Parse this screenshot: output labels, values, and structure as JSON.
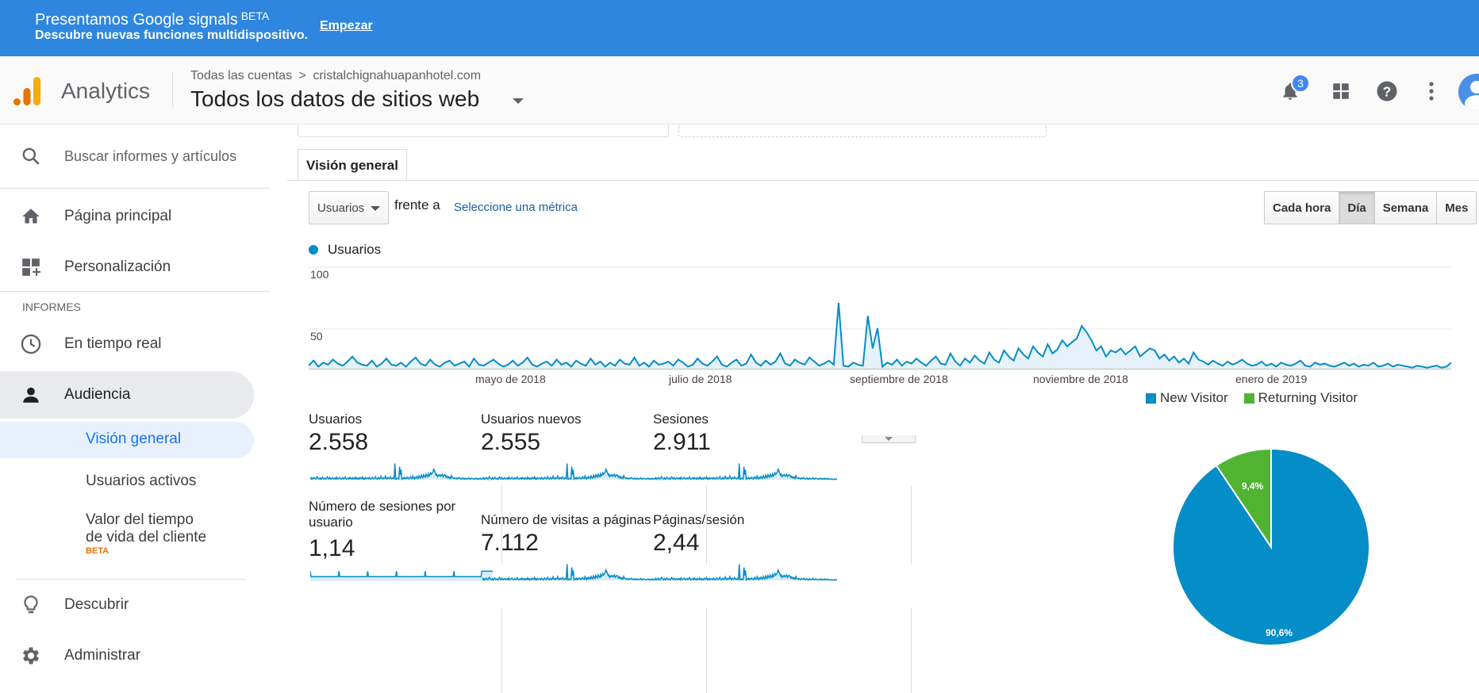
{
  "banner": {
    "title": "Presentamos Google signals",
    "title_badge": "BETA",
    "subtitle": "Descubre nuevas funciones multidispositivo.",
    "cta": "Empezar"
  },
  "header": {
    "brand": "Analytics",
    "breadcrumb_root": "Todas las cuentas",
    "breadcrumb_sep": ">",
    "breadcrumb_account": "cristalchignahuapanhotel.com",
    "view_title": "Todos los datos de sitios web",
    "notification_count": "3"
  },
  "sidebar": {
    "search_placeholder": "Buscar informes y artículos",
    "home": "Página principal",
    "customization": "Personalización",
    "section_reports": "INFORMES",
    "realtime": "En tiempo real",
    "audience": "Audiencia",
    "sub": {
      "overview": "Visión general",
      "active_users": "Usuarios activos",
      "lifetime_value_1": "Valor del tiempo",
      "lifetime_value_2": "de vida del cliente",
      "lifetime_badge": "BETA"
    },
    "discover": "Descubrir",
    "admin": "Administrar"
  },
  "main": {
    "tab": "Visión general",
    "metric_select": "Usuarios",
    "versus": "frente a",
    "select_metric": "Seleccione una métrica",
    "granularity": [
      "Cada hora",
      "Día",
      "Semana",
      "Mes"
    ],
    "granularity_active": "Día",
    "legend": "Usuarios"
  },
  "chart_data": [
    {
      "type": "area",
      "series": [
        {
          "name": "Usuarios",
          "color": "#058dc7"
        }
      ],
      "y_ticks": [
        "100",
        "50"
      ],
      "ylim": [
        0,
        100
      ],
      "x_ticks": [
        "mayo de 2018",
        "julio de 2018",
        "septiembre de 2018",
        "noviembre de 2018",
        "enero de 2019"
      ],
      "grid": true,
      "daily_values": [
        3,
        8,
        2,
        6,
        4,
        9,
        5,
        3,
        7,
        12,
        6,
        4,
        3,
        8,
        2,
        5,
        10,
        4,
        3,
        6,
        2,
        7,
        11,
        5,
        3,
        9,
        4,
        2,
        6,
        8,
        3,
        5,
        7,
        2,
        10,
        4,
        3,
        6,
        9,
        5,
        2,
        4,
        8,
        3,
        6,
        11,
        4,
        2,
        5,
        7,
        3,
        9,
        4,
        6,
        2,
        8,
        5,
        3,
        10,
        4,
        7,
        2,
        6,
        3,
        9,
        5,
        4,
        11,
        3,
        6,
        2,
        8,
        4,
        5,
        7,
        3,
        9,
        6,
        2,
        4,
        10,
        5,
        3,
        7,
        12,
        4,
        2,
        6,
        9,
        3,
        5,
        14,
        6,
        3,
        8,
        4,
        7,
        15,
        5,
        3,
        9,
        6,
        4,
        11,
        7,
        3,
        5,
        8,
        4,
        65,
        3,
        2,
        6,
        4,
        3,
        52,
        20,
        40,
        2,
        6,
        4,
        9,
        3,
        7,
        5,
        10,
        6,
        3,
        8,
        12,
        5,
        4,
        15,
        7,
        3,
        10,
        6,
        13,
        8,
        5,
        16,
        9,
        6,
        18,
        12,
        8,
        20,
        14,
        10,
        22,
        16,
        12,
        24,
        15,
        19,
        28,
        22,
        26,
        30,
        42,
        36,
        28,
        18,
        22,
        12,
        18,
        16,
        20,
        14,
        18,
        22,
        12,
        16,
        20,
        18,
        10,
        14,
        8,
        12,
        6,
        10,
        5,
        16,
        9,
        7,
        4,
        8,
        5,
        3,
        7,
        4,
        6,
        9,
        5,
        3,
        4,
        7,
        3,
        5,
        2,
        6,
        4,
        3,
        5,
        8,
        3,
        2,
        6,
        4,
        5,
        3,
        2,
        4,
        6,
        3,
        5,
        2,
        4,
        3,
        6,
        2,
        3,
        5,
        2,
        4,
        3,
        2,
        1,
        3,
        2,
        1,
        2,
        3,
        1,
        2,
        6
      ],
      "y_meaning": "Usuarios por día"
    },
    {
      "type": "pie",
      "categories": [
        "New Visitor",
        "Returning Visitor"
      ],
      "values": [
        90.6,
        9.4
      ],
      "labels": [
        "90,6%",
        "9,4%"
      ],
      "colors": [
        "#058dc7",
        "#50b432"
      ],
      "legend": "top"
    }
  ],
  "scorecards": [
    {
      "label": "Usuarios",
      "value": "2.558"
    },
    {
      "label": "Usuarios nuevos",
      "value": "2.555"
    },
    {
      "label": "Sesiones",
      "value": "2.911"
    },
    {
      "label": "Número de sesiones por usuario",
      "value": "1,14"
    },
    {
      "label": "Número de visitas a páginas",
      "value": "7.112"
    },
    {
      "label": "Páginas/sesión",
      "value": "2,44"
    }
  ]
}
